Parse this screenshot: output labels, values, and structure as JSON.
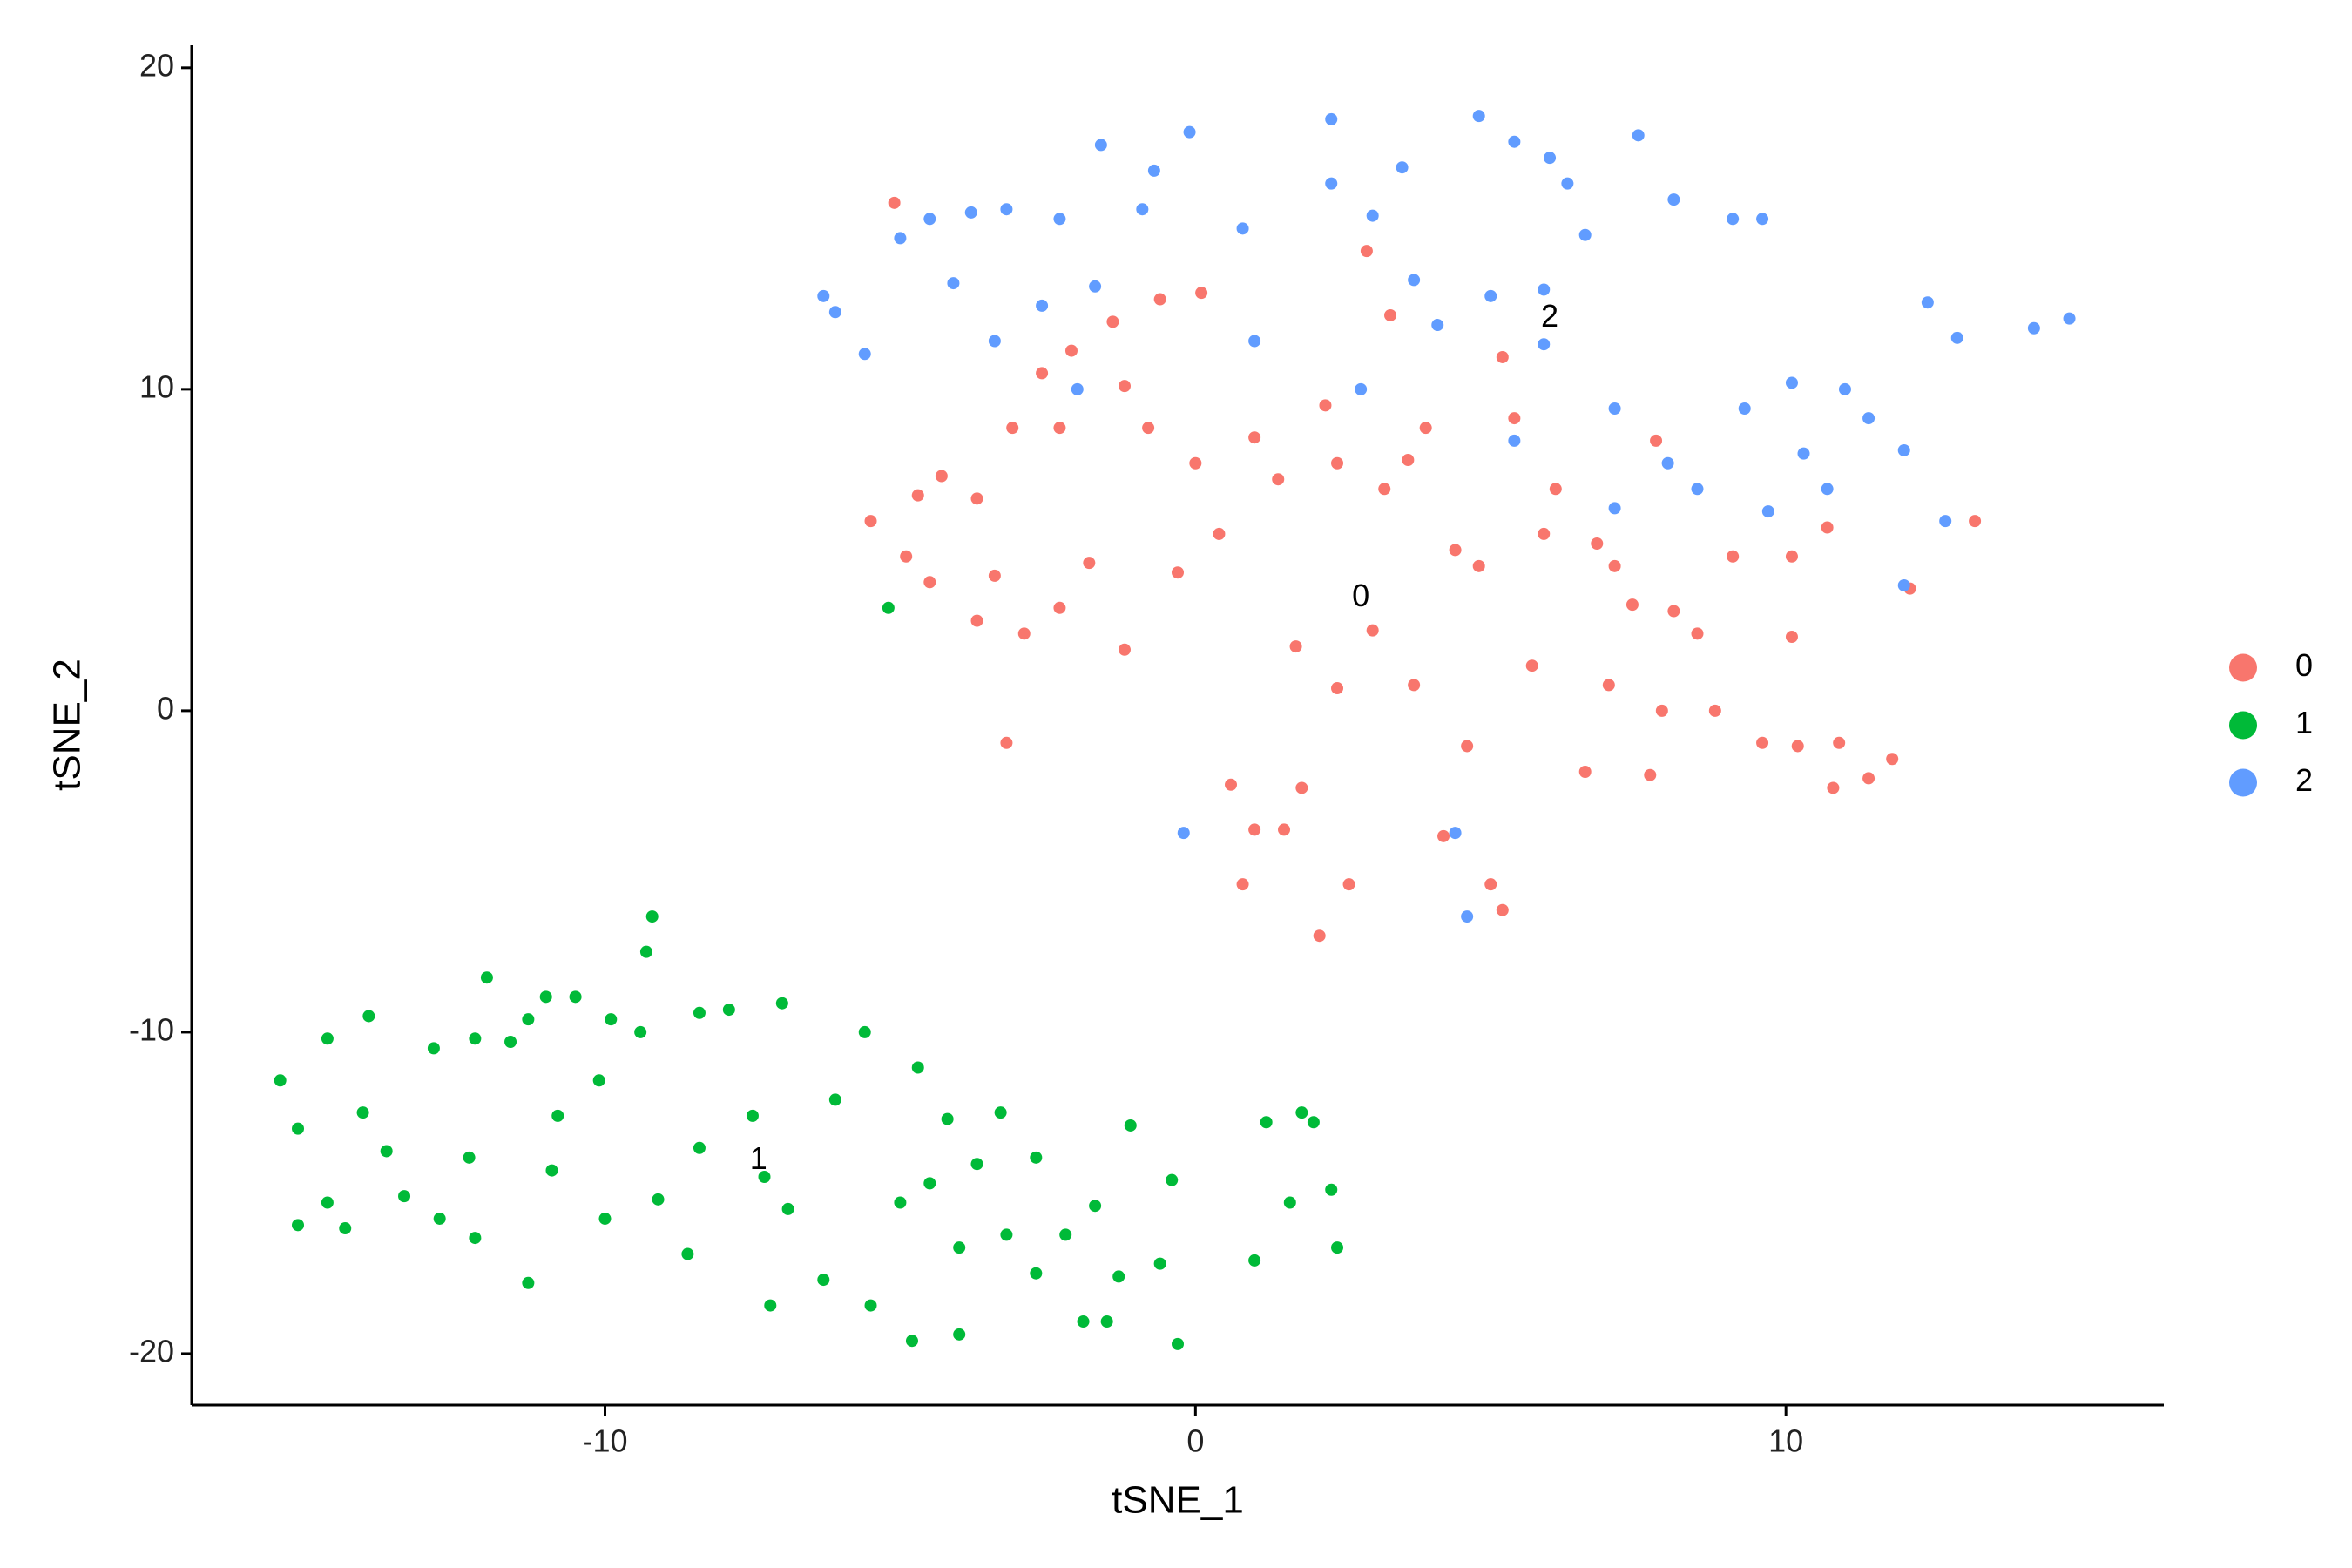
{
  "chart_data": {
    "type": "scatter",
    "x_label": "tSNE_1",
    "y_label": "tSNE_2",
    "xlim": [
      -17.0,
      16.4
    ],
    "ylim": [
      -21.6,
      20.7
    ],
    "xticks": [
      -10,
      0,
      10
    ],
    "yticks": [
      -20,
      -10,
      0,
      10,
      20
    ],
    "grid": false,
    "legend": "right",
    "annotations": [
      {
        "text": "0",
        "x": 2.8,
        "y": 3.5
      },
      {
        "text": "1",
        "x": -7.4,
        "y": -14.0
      },
      {
        "text": "2",
        "x": 6.0,
        "y": 12.2
      }
    ],
    "series": [
      {
        "name": "0",
        "color": "#F8766D",
        "x": [
          -5.1,
          -5.5,
          -4.9,
          -4.7,
          -4.3,
          -4.5,
          -3.7,
          -3.4,
          -3.2,
          -3.1,
          -2.9,
          -2.6,
          -2.3,
          -2.1,
          -1.8,
          -1.4,
          -1.2,
          -0.8,
          -0.6,
          -0.3,
          0.1,
          0.0,
          0.4,
          0.6,
          0.8,
          1.0,
          1.0,
          1.4,
          1.5,
          1.7,
          1.8,
          2.1,
          2.2,
          2.4,
          2.4,
          2.6,
          2.9,
          3.0,
          3.2,
          3.3,
          3.6,
          3.7,
          3.9,
          4.2,
          4.4,
          4.6,
          4.8,
          5.0,
          5.2,
          5.2,
          5.4,
          5.7,
          5.9,
          6.1,
          6.6,
          6.8,
          7.1,
          7.4,
          7.7,
          7.9,
          8.1,
          8.5,
          8.8,
          9.1,
          9.6,
          10.1,
          10.1,
          10.2,
          10.8,
          10.9,
          11.4,
          11.8,
          12.1,
          10.7,
          13.2,
          7.8,
          7.0,
          -1.2,
          -3.7,
          -2.3
        ],
        "y": [
          15.8,
          5.9,
          4.8,
          6.7,
          7.3,
          4.0,
          6.6,
          4.2,
          -1.0,
          8.8,
          2.4,
          10.5,
          3.2,
          11.2,
          4.6,
          12.1,
          1.9,
          8.8,
          12.8,
          4.3,
          13.0,
          7.7,
          5.5,
          -2.3,
          -5.4,
          8.5,
          -3.7,
          7.2,
          -3.7,
          2.0,
          -2.4,
          -7.0,
          9.5,
          7.7,
          0.7,
          -5.4,
          14.3,
          2.5,
          6.9,
          12.3,
          7.8,
          0.8,
          8.8,
          -3.9,
          5.0,
          -1.1,
          4.5,
          -5.4,
          11.0,
          -6.2,
          9.1,
          1.4,
          5.5,
          6.9,
          -1.9,
          5.2,
          4.5,
          3.3,
          -2.0,
          0.0,
          3.1,
          2.4,
          0.0,
          4.8,
          -1.0,
          2.3,
          4.8,
          -1.1,
          -2.4,
          -1.0,
          -2.1,
          -1.5,
          3.8,
          5.7,
          5.9,
          8.4,
          0.8,
          10.1,
          2.8,
          8.8
        ]
      },
      {
        "name": "1",
        "color": "#00BA38",
        "x": [
          -15.5,
          -14.7,
          -14.0,
          -15.2,
          -15.2,
          -14.4,
          -14.7,
          -14.1,
          -13.7,
          -13.4,
          -12.8,
          -12.9,
          -12.0,
          -12.2,
          -12.3,
          -12.2,
          -11.6,
          -11.3,
          -11.3,
          -11.0,
          -10.9,
          -10.8,
          -10.5,
          -10.1,
          -10.0,
          -9.9,
          -9.4,
          -9.2,
          -9.3,
          -9.1,
          -8.6,
          -8.4,
          -8.4,
          -7.9,
          -7.5,
          -7.3,
          -7.2,
          -7.0,
          -6.9,
          -6.3,
          -6.1,
          -5.6,
          -5.5,
          -5.0,
          -4.7,
          -4.8,
          -4.5,
          -4.2,
          -4.0,
          -4.0,
          -3.7,
          -3.3,
          -3.2,
          -2.7,
          -2.7,
          -2.2,
          -1.9,
          -1.7,
          -1.5,
          -1.3,
          -1.1,
          -0.6,
          -0.4,
          -0.3,
          1.0,
          1.2,
          1.8,
          2.0,
          1.6,
          2.3,
          2.4,
          -5.2
        ],
        "y": [
          -11.5,
          -10.2,
          -9.5,
          -13.0,
          -16.0,
          -16.1,
          -15.3,
          -12.5,
          -13.7,
          -15.1,
          -15.8,
          -10.5,
          -8.3,
          -10.2,
          -13.9,
          -16.4,
          -10.3,
          -9.6,
          -17.8,
          -8.9,
          -14.3,
          -12.6,
          -8.9,
          -11.5,
          -15.8,
          -9.6,
          -10.0,
          -6.4,
          -7.5,
          -15.2,
          -16.9,
          -9.4,
          -13.6,
          -9.3,
          -12.6,
          -14.5,
          -18.5,
          -9.1,
          -15.5,
          -17.7,
          -12.1,
          -10.0,
          -18.5,
          -15.3,
          -11.1,
          -19.6,
          -14.7,
          -12.7,
          -19.4,
          -16.7,
          -14.1,
          -12.5,
          -16.3,
          -13.9,
          -17.5,
          -16.3,
          -19.0,
          -15.4,
          -19.0,
          -17.6,
          -12.9,
          -17.2,
          -14.6,
          -19.7,
          -17.1,
          -12.8,
          -12.5,
          -12.8,
          -15.3,
          -14.9,
          -16.7,
          3.2
        ]
      },
      {
        "name": "2",
        "color": "#619CFF",
        "x": [
          -6.3,
          -6.1,
          -5.6,
          -5.0,
          -4.5,
          -4.1,
          -3.8,
          -3.4,
          -3.2,
          -2.6,
          -2.3,
          -2.0,
          -1.6,
          -1.7,
          -0.9,
          -0.7,
          -0.1,
          -0.2,
          0.8,
          1.0,
          2.3,
          2.3,
          2.8,
          3.0,
          3.5,
          3.7,
          4.1,
          4.4,
          4.6,
          4.8,
          5.0,
          5.4,
          6.0,
          5.9,
          5.9,
          6.3,
          6.6,
          7.1,
          7.5,
          8.1,
          8.0,
          8.5,
          9.1,
          9.3,
          9.6,
          9.7,
          10.1,
          10.3,
          10.7,
          11.0,
          11.4,
          12.0,
          12.4,
          12.7,
          12.9,
          14.2,
          14.8,
          12.0,
          7.1,
          5.4
        ],
        "y": [
          12.9,
          12.4,
          11.1,
          14.7,
          15.3,
          13.3,
          15.5,
          11.5,
          15.6,
          12.6,
          15.3,
          10.0,
          17.6,
          13.2,
          15.6,
          16.8,
          18.0,
          -3.8,
          15.0,
          11.5,
          18.4,
          16.4,
          10.0,
          15.4,
          16.9,
          13.4,
          12.0,
          -3.8,
          -6.4,
          18.5,
          12.9,
          17.7,
          17.2,
          13.1,
          11.4,
          16.4,
          14.8,
          9.4,
          17.9,
          15.9,
          7.7,
          6.9,
          15.3,
          9.4,
          15.3,
          6.2,
          10.2,
          8.0,
          6.9,
          10.0,
          9.1,
          8.1,
          12.7,
          5.9,
          11.6,
          11.9,
          12.2,
          3.9,
          6.3,
          8.4
        ]
      }
    ]
  }
}
